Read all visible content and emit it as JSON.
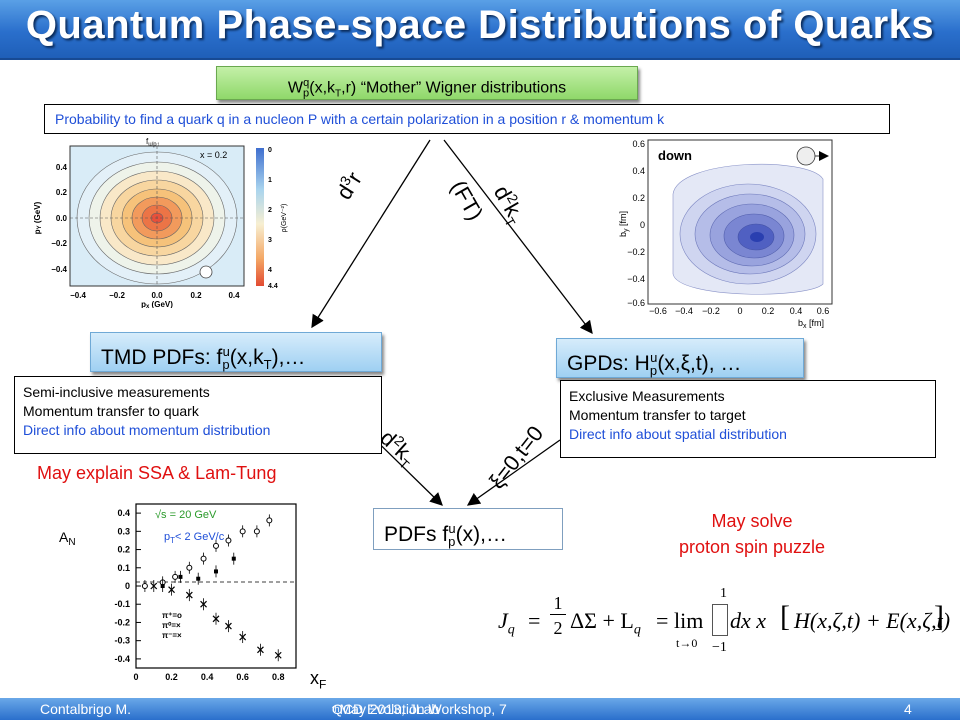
{
  "title": "Quantum Phase-space Distributions of Quarks",
  "wigner_box": {
    "w": "W",
    "sub_p": "p",
    "sup_q": "q",
    "args1": "(x,k",
    "sub_T": "T",
    "args2": ",r)  “Mother” Wigner distributions"
  },
  "probability_text": "Probability to find a quark q in a nucleon P with a certain polarization in a position r  & momentum k",
  "arrows": {
    "left_top": {
      "d": "d",
      "sup": "3",
      "var": "r"
    },
    "right_top": {
      "d": "d",
      "sup": "2",
      "var": "k",
      "sub": "T",
      "ft": "(FT)"
    },
    "left_bottom": {
      "d": "d",
      "sup": "2",
      "var": "k",
      "sub": "T"
    },
    "right_bottom": {
      "text": "ξ=0,t=0"
    }
  },
  "tmd": {
    "main": "TMD PDFs: f",
    "sub": "p",
    "sup": "u",
    "args": "(x,k",
    "sub_T": "T",
    "end": "),…"
  },
  "gpd": {
    "main": "GPDs: H",
    "sub": "p",
    "sup": "u",
    "args": "(x,ξ,t), …"
  },
  "pdf": {
    "main": "PDFs f",
    "sub": "p",
    "sup": "u",
    "args": "(x),…"
  },
  "semi_inclusive": [
    "Semi-inclusive measurements",
    "Momentum transfer to quark",
    "Direct info about momentum distribution"
  ],
  "exclusive": [
    "Exclusive Measurements",
    "Momentum transfer to target",
    "Direct info about spatial distribution"
  ],
  "may_explain": "May explain SSA & Lam-Tung",
  "may_solve": [
    "May solve",
    "proton spin puzzle"
  ],
  "tmd_plot": {
    "title": "f",
    "title_sub": "u/p↑",
    "x_label": "p",
    "x_label_sub": "x",
    "x_label_unit": " (GeV)",
    "y_label": "p",
    "y_label_sub": "Y",
    "y_label_unit": " (GeV)",
    "annotation": "x = 0.2",
    "x_ticks": [
      "−0.4",
      "−0.2",
      "0.0",
      "0.2",
      "0.4"
    ],
    "y_ticks": [
      "0.4",
      "0.2",
      "0.0",
      "−0.2",
      "−0.4"
    ],
    "colorbar_label": "ρ(GeV⁻²)",
    "colorbar_ticks": [
      "0",
      "1",
      "2",
      "3",
      "4",
      "4.4"
    ],
    "colors": {
      "center": "#e8503a",
      "mid": "#f6c27a",
      "outer": "#d9ecf7"
    }
  },
  "gpd_plot": {
    "label": "down",
    "x_label": "b",
    "x_label_sub": "x",
    "x_label_unit": " [fm]",
    "y_label": "b",
    "y_label_sub": "y",
    "y_label_unit": " [fm]",
    "x_ticks": [
      "−0.6",
      "−0.4",
      "−0.2",
      "0",
      "0.2",
      "0.4",
      "0.6"
    ],
    "y_ticks": [
      "0.6",
      "0.4",
      "0.2",
      "0",
      "−0.2",
      "−0.4",
      "−0.6"
    ],
    "colors": {
      "center": "#2a3fb0",
      "outer": "#e4e8f6"
    }
  },
  "ssa_plot": {
    "y_label": "A",
    "y_label_sub": "N",
    "x_label": "x",
    "x_label_sub": "F",
    "energy_label": "√s = 20 GeV",
    "pt_label": "p",
    "pt_sub": "T",
    "pt_rest": "< 2 GeV/c",
    "y_ticks": [
      "0.4",
      "0.3",
      "0.2",
      "0.1",
      "0",
      "-0.1",
      "-0.2",
      "-0.3",
      "-0.4"
    ],
    "x_ticks": [
      "0",
      "0.2",
      "0.4",
      "0.6",
      "0.8"
    ],
    "legend": [
      "π⁺=o",
      "π⁰=×",
      "π⁻=×"
    ]
  },
  "chart_data": {
    "type": "scatter",
    "title": "",
    "xlabel": "x_F",
    "ylabel": "A_N",
    "xlim": [
      0,
      0.9
    ],
    "ylim": [
      -0.45,
      0.45
    ],
    "series": [
      {
        "name": "π⁺",
        "x": [
          0.05,
          0.15,
          0.22,
          0.3,
          0.38,
          0.45,
          0.52,
          0.6,
          0.68,
          0.75
        ],
        "y": [
          0.0,
          0.02,
          0.05,
          0.1,
          0.15,
          0.22,
          0.25,
          0.3,
          0.3,
          0.36
        ]
      },
      {
        "name": "π⁰",
        "x": [
          0.15,
          0.25,
          0.35,
          0.45,
          0.55
        ],
        "y": [
          0.0,
          0.05,
          0.04,
          0.08,
          0.15
        ]
      },
      {
        "name": "π⁻",
        "x": [
          0.1,
          0.2,
          0.3,
          0.38,
          0.45,
          0.52,
          0.6,
          0.7,
          0.8
        ],
        "y": [
          0.0,
          -0.02,
          -0.05,
          -0.1,
          -0.18,
          -0.22,
          -0.28,
          -0.35,
          -0.38
        ]
      }
    ]
  },
  "formula": {
    "lhs": "J",
    "lhs_sub": "q",
    "eq": "=",
    "half_num": "1",
    "half_den": "2",
    "delta_sigma": "ΔΣ + L",
    "L_sub": "q",
    "lim": "lim",
    "lim_sub": "t→0",
    "int_top": "1",
    "int_bot": "−1",
    "integrand": "dx x",
    "bracket": "H(x,ζ,t) + E(x,ζ,t)"
  },
  "footer": {
    "author": "Contalbrigo M.",
    "event_a": "QCD Evolution Workshop, 7",
    "event_sup": "th",
    "event_b": " May 2013, JLab",
    "page": "4"
  }
}
